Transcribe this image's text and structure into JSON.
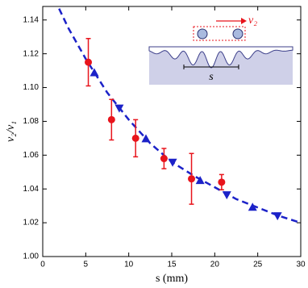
{
  "chart_data": {
    "type": "scatter",
    "xlabel": "s (mm)",
    "ylabel": "v₂/v₁",
    "xlim": [
      0,
      30
    ],
    "ylim": [
      1.0,
      1.148
    ],
    "xticks": [
      0,
      5,
      10,
      15,
      20,
      25,
      30
    ],
    "yticks": [
      {
        "value": 1.0,
        "label": "1.00"
      },
      {
        "value": 1.02,
        "label": "1.02"
      },
      {
        "value": 1.04,
        "label": "1.04"
      },
      {
        "value": 1.06,
        "label": "1.06"
      },
      {
        "value": 1.08,
        "label": "1.08"
      },
      {
        "value": 1.1,
        "label": "1.10"
      },
      {
        "value": 1.12,
        "label": "1.12"
      },
      {
        "value": 1.14,
        "label": "1.14"
      }
    ],
    "series": [
      {
        "color": "#e8141c",
        "marker": "circle",
        "x": [
          5.3,
          8.0,
          10.8,
          14.1,
          17.3,
          20.8
        ],
        "values": [
          1.115,
          1.081,
          1.07,
          1.058,
          1.046,
          1.044
        ],
        "errors": [
          0.014,
          0.012,
          0.011,
          0.006,
          0.015,
          0.0045
        ]
      },
      {
        "color": "#1c22c8",
        "marker": "triangle-up",
        "x": [
          6.0,
          12.0,
          18.3,
          24.4
        ],
        "values": [
          1.1086,
          1.0695,
          1.0448,
          1.029
        ]
      },
      {
        "color": "#1c22c8",
        "marker": "triangle-down",
        "x": [
          8.9,
          15.1,
          21.4,
          27.3
        ],
        "values": [
          1.088,
          1.056,
          1.0367,
          1.0243
        ]
      },
      {
        "color": "#1c22c8",
        "marker": "dashed-line",
        "x": [
          1.9,
          3,
          5,
          7.5,
          10,
          12.5,
          15,
          17.5,
          20,
          22.5,
          25,
          27.5,
          30
        ],
        "values": [
          1.1467,
          1.135,
          1.117,
          1.097,
          1.081,
          1.067,
          1.056,
          1.048,
          1.041,
          1.034,
          1.029,
          1.024,
          1.02
        ]
      }
    ],
    "annotations": [
      "v₂",
      "s"
    ]
  }
}
